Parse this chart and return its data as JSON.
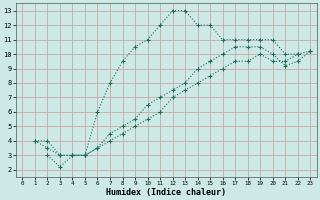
{
  "xlabel": "Humidex (Indice chaleur)",
  "ylabel": "",
  "bg_color": "#cce9e5",
  "grid_color": "#c8a8a8",
  "line_color": "#1a6b5a",
  "xlim": [
    -0.5,
    23.5
  ],
  "ylim": [
    1.5,
    13.5
  ],
  "xticks": [
    0,
    1,
    2,
    3,
    4,
    5,
    6,
    7,
    8,
    9,
    10,
    11,
    12,
    13,
    14,
    15,
    16,
    17,
    18,
    19,
    20,
    21,
    22,
    23
  ],
  "yticks": [
    2,
    3,
    4,
    5,
    6,
    7,
    8,
    9,
    10,
    11,
    12,
    13
  ],
  "series": [
    {
      "x": [
        1,
        2,
        3,
        4,
        5,
        6,
        7,
        8,
        9,
        10,
        11,
        12,
        13,
        14,
        15,
        16,
        17,
        18,
        19,
        20,
        21,
        22
      ],
      "y": [
        4,
        4,
        3,
        3,
        3,
        6,
        8,
        9.5,
        10.5,
        11,
        12,
        13,
        13,
        12,
        12,
        11,
        11,
        11,
        11,
        11,
        10,
        10
      ]
    },
    {
      "x": [
        2,
        3,
        4,
        5,
        6,
        7,
        8,
        9,
        10,
        11,
        12,
        13,
        14,
        15,
        16,
        17,
        18,
        19,
        20,
        21,
        22,
        23
      ],
      "y": [
        3,
        2.2,
        3,
        3,
        3.5,
        4.5,
        5,
        5.5,
        6.5,
        7,
        7.5,
        8,
        9,
        9.5,
        10,
        10.5,
        10.5,
        10.5,
        10,
        9.2,
        9.5,
        10.2
      ]
    },
    {
      "x": [
        1,
        2,
        3,
        4,
        5,
        6,
        7,
        8,
        9,
        10,
        11,
        12,
        13,
        14,
        15,
        16,
        17,
        18,
        19,
        20,
        21,
        22,
        23
      ],
      "y": [
        4,
        3.5,
        3,
        3,
        3,
        3.5,
        4,
        4.5,
        5,
        5.5,
        6,
        7,
        7.5,
        8,
        8.5,
        9,
        9.5,
        9.5,
        10,
        9.5,
        9.5,
        10,
        10.2
      ]
    }
  ]
}
